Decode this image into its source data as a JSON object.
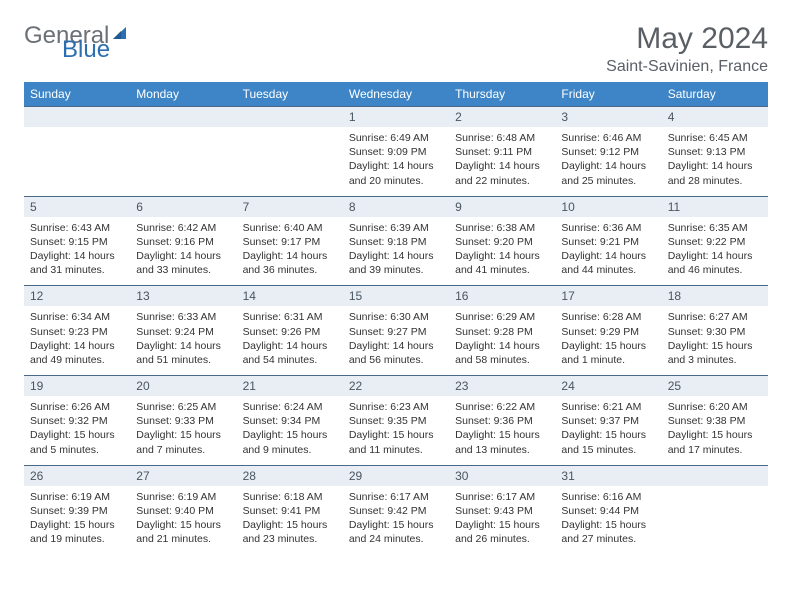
{
  "logo": {
    "gray_text": "General",
    "blue_text": "Blue"
  },
  "title": "May 2024",
  "location": "Saint-Savinien, France",
  "header_bg": "#3d85c6",
  "daynum_bg": "#e8eef4",
  "days_of_week": [
    "Sunday",
    "Monday",
    "Tuesday",
    "Wednesday",
    "Thursday",
    "Friday",
    "Saturday"
  ],
  "weeks": [
    {
      "nums": [
        "",
        "",
        "",
        "1",
        "2",
        "3",
        "4"
      ],
      "cells": [
        null,
        null,
        null,
        {
          "sunrise": "Sunrise: 6:49 AM",
          "sunset": "Sunset: 9:09 PM",
          "dl1": "Daylight: 14 hours",
          "dl2": "and 20 minutes."
        },
        {
          "sunrise": "Sunrise: 6:48 AM",
          "sunset": "Sunset: 9:11 PM",
          "dl1": "Daylight: 14 hours",
          "dl2": "and 22 minutes."
        },
        {
          "sunrise": "Sunrise: 6:46 AM",
          "sunset": "Sunset: 9:12 PM",
          "dl1": "Daylight: 14 hours",
          "dl2": "and 25 minutes."
        },
        {
          "sunrise": "Sunrise: 6:45 AM",
          "sunset": "Sunset: 9:13 PM",
          "dl1": "Daylight: 14 hours",
          "dl2": "and 28 minutes."
        }
      ]
    },
    {
      "nums": [
        "5",
        "6",
        "7",
        "8",
        "9",
        "10",
        "11"
      ],
      "cells": [
        {
          "sunrise": "Sunrise: 6:43 AM",
          "sunset": "Sunset: 9:15 PM",
          "dl1": "Daylight: 14 hours",
          "dl2": "and 31 minutes."
        },
        {
          "sunrise": "Sunrise: 6:42 AM",
          "sunset": "Sunset: 9:16 PM",
          "dl1": "Daylight: 14 hours",
          "dl2": "and 33 minutes."
        },
        {
          "sunrise": "Sunrise: 6:40 AM",
          "sunset": "Sunset: 9:17 PM",
          "dl1": "Daylight: 14 hours",
          "dl2": "and 36 minutes."
        },
        {
          "sunrise": "Sunrise: 6:39 AM",
          "sunset": "Sunset: 9:18 PM",
          "dl1": "Daylight: 14 hours",
          "dl2": "and 39 minutes."
        },
        {
          "sunrise": "Sunrise: 6:38 AM",
          "sunset": "Sunset: 9:20 PM",
          "dl1": "Daylight: 14 hours",
          "dl2": "and 41 minutes."
        },
        {
          "sunrise": "Sunrise: 6:36 AM",
          "sunset": "Sunset: 9:21 PM",
          "dl1": "Daylight: 14 hours",
          "dl2": "and 44 minutes."
        },
        {
          "sunrise": "Sunrise: 6:35 AM",
          "sunset": "Sunset: 9:22 PM",
          "dl1": "Daylight: 14 hours",
          "dl2": "and 46 minutes."
        }
      ]
    },
    {
      "nums": [
        "12",
        "13",
        "14",
        "15",
        "16",
        "17",
        "18"
      ],
      "cells": [
        {
          "sunrise": "Sunrise: 6:34 AM",
          "sunset": "Sunset: 9:23 PM",
          "dl1": "Daylight: 14 hours",
          "dl2": "and 49 minutes."
        },
        {
          "sunrise": "Sunrise: 6:33 AM",
          "sunset": "Sunset: 9:24 PM",
          "dl1": "Daylight: 14 hours",
          "dl2": "and 51 minutes."
        },
        {
          "sunrise": "Sunrise: 6:31 AM",
          "sunset": "Sunset: 9:26 PM",
          "dl1": "Daylight: 14 hours",
          "dl2": "and 54 minutes."
        },
        {
          "sunrise": "Sunrise: 6:30 AM",
          "sunset": "Sunset: 9:27 PM",
          "dl1": "Daylight: 14 hours",
          "dl2": "and 56 minutes."
        },
        {
          "sunrise": "Sunrise: 6:29 AM",
          "sunset": "Sunset: 9:28 PM",
          "dl1": "Daylight: 14 hours",
          "dl2": "and 58 minutes."
        },
        {
          "sunrise": "Sunrise: 6:28 AM",
          "sunset": "Sunset: 9:29 PM",
          "dl1": "Daylight: 15 hours",
          "dl2": "and 1 minute."
        },
        {
          "sunrise": "Sunrise: 6:27 AM",
          "sunset": "Sunset: 9:30 PM",
          "dl1": "Daylight: 15 hours",
          "dl2": "and 3 minutes."
        }
      ]
    },
    {
      "nums": [
        "19",
        "20",
        "21",
        "22",
        "23",
        "24",
        "25"
      ],
      "cells": [
        {
          "sunrise": "Sunrise: 6:26 AM",
          "sunset": "Sunset: 9:32 PM",
          "dl1": "Daylight: 15 hours",
          "dl2": "and 5 minutes."
        },
        {
          "sunrise": "Sunrise: 6:25 AM",
          "sunset": "Sunset: 9:33 PM",
          "dl1": "Daylight: 15 hours",
          "dl2": "and 7 minutes."
        },
        {
          "sunrise": "Sunrise: 6:24 AM",
          "sunset": "Sunset: 9:34 PM",
          "dl1": "Daylight: 15 hours",
          "dl2": "and 9 minutes."
        },
        {
          "sunrise": "Sunrise: 6:23 AM",
          "sunset": "Sunset: 9:35 PM",
          "dl1": "Daylight: 15 hours",
          "dl2": "and 11 minutes."
        },
        {
          "sunrise": "Sunrise: 6:22 AM",
          "sunset": "Sunset: 9:36 PM",
          "dl1": "Daylight: 15 hours",
          "dl2": "and 13 minutes."
        },
        {
          "sunrise": "Sunrise: 6:21 AM",
          "sunset": "Sunset: 9:37 PM",
          "dl1": "Daylight: 15 hours",
          "dl2": "and 15 minutes."
        },
        {
          "sunrise": "Sunrise: 6:20 AM",
          "sunset": "Sunset: 9:38 PM",
          "dl1": "Daylight: 15 hours",
          "dl2": "and 17 minutes."
        }
      ]
    },
    {
      "nums": [
        "26",
        "27",
        "28",
        "29",
        "30",
        "31",
        ""
      ],
      "cells": [
        {
          "sunrise": "Sunrise: 6:19 AM",
          "sunset": "Sunset: 9:39 PM",
          "dl1": "Daylight: 15 hours",
          "dl2": "and 19 minutes."
        },
        {
          "sunrise": "Sunrise: 6:19 AM",
          "sunset": "Sunset: 9:40 PM",
          "dl1": "Daylight: 15 hours",
          "dl2": "and 21 minutes."
        },
        {
          "sunrise": "Sunrise: 6:18 AM",
          "sunset": "Sunset: 9:41 PM",
          "dl1": "Daylight: 15 hours",
          "dl2": "and 23 minutes."
        },
        {
          "sunrise": "Sunrise: 6:17 AM",
          "sunset": "Sunset: 9:42 PM",
          "dl1": "Daylight: 15 hours",
          "dl2": "and 24 minutes."
        },
        {
          "sunrise": "Sunrise: 6:17 AM",
          "sunset": "Sunset: 9:43 PM",
          "dl1": "Daylight: 15 hours",
          "dl2": "and 26 minutes."
        },
        {
          "sunrise": "Sunrise: 6:16 AM",
          "sunset": "Sunset: 9:44 PM",
          "dl1": "Daylight: 15 hours",
          "dl2": "and 27 minutes."
        },
        null
      ]
    }
  ]
}
